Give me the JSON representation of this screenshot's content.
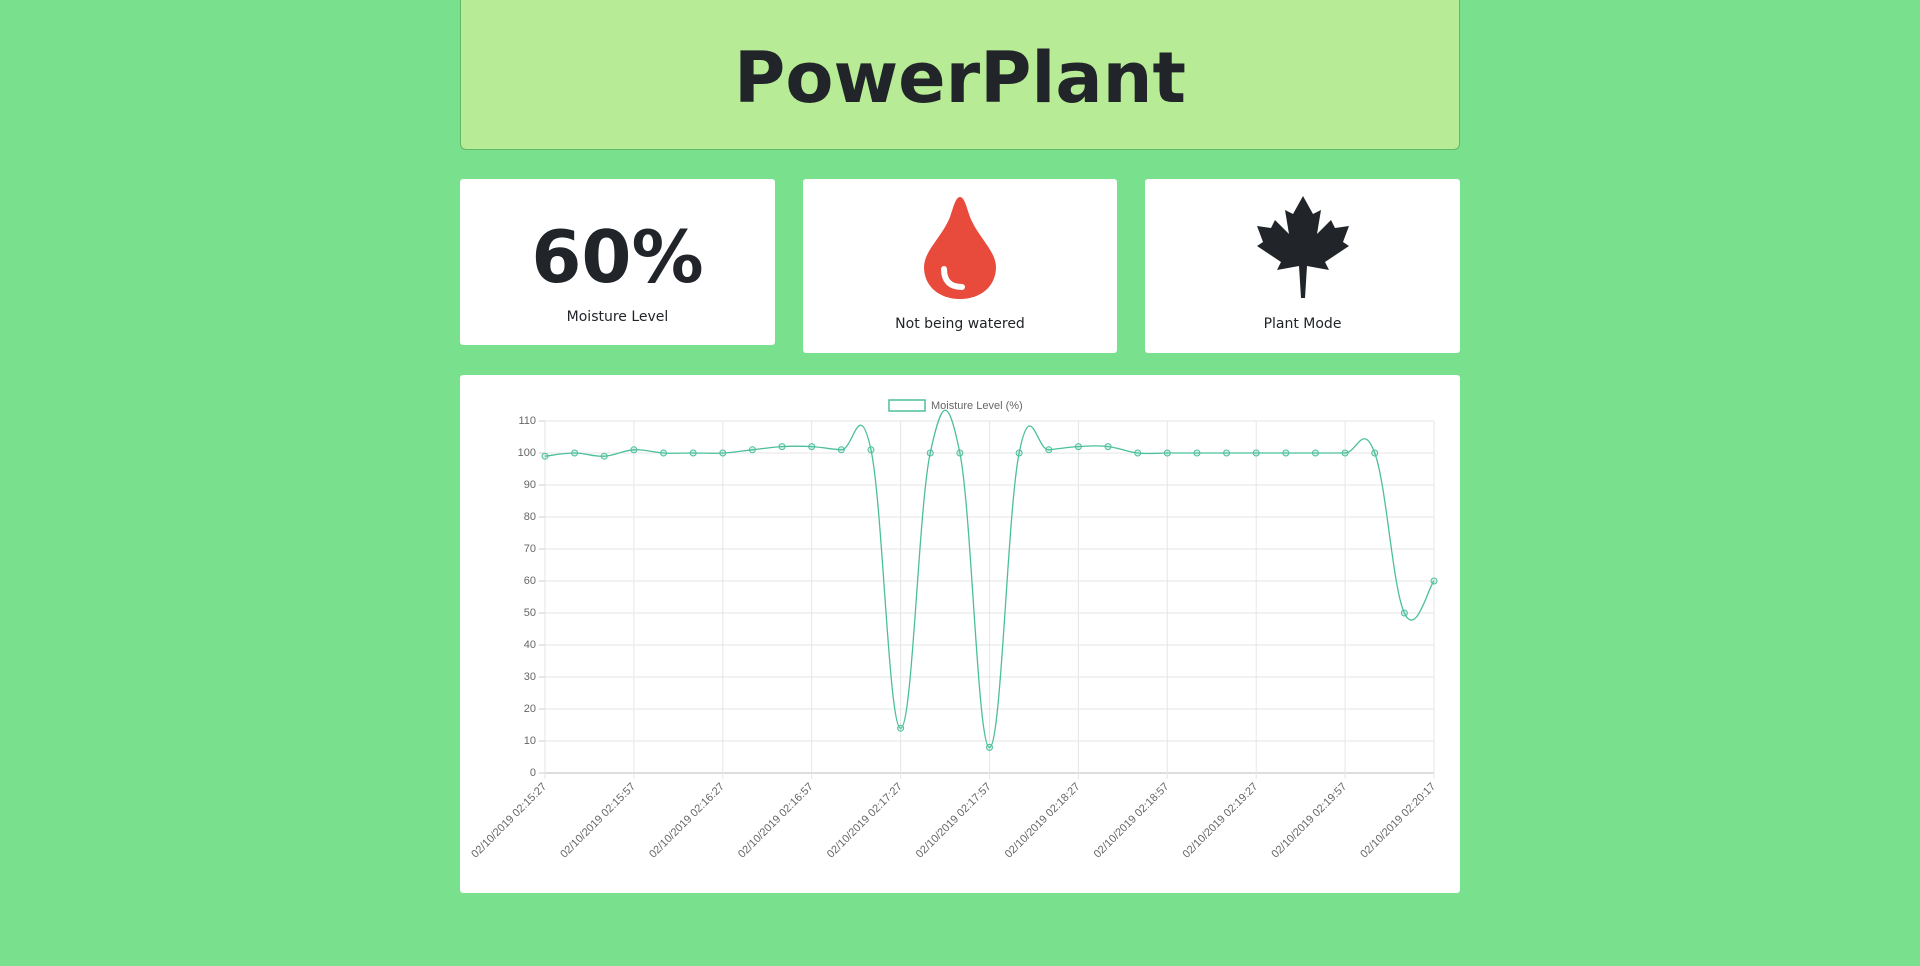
{
  "header": {
    "title": "PowerPlant"
  },
  "cards": [
    {
      "value": "60%",
      "label": "Moisture Level"
    },
    {
      "label": "Not being watered"
    },
    {
      "label": "Plant Mode"
    }
  ],
  "chart_data": {
    "type": "line",
    "categories": [
      "02/10/2019 02:15:27",
      null,
      null,
      "02/10/2019 02:15:57",
      null,
      null,
      "02/10/2019 02:16:27",
      null,
      null,
      "02/10/2019 02:16:57",
      null,
      null,
      "02/10/2019 02:17:27",
      null,
      null,
      "02/10/2019 02:17:57",
      null,
      null,
      "02/10/2019 02:18:27",
      null,
      null,
      "02/10/2019 02:18:57",
      null,
      null,
      "02/10/2019 02:19:27",
      null,
      null,
      "02/10/2019 02:19:57",
      null,
      null,
      "02/10/2019 02:20:17"
    ],
    "series": [
      {
        "name": "Moisture Level (%)",
        "color": "#4bbf9c",
        "values": [
          99,
          100,
          99,
          101,
          100,
          100,
          100,
          101,
          102,
          102,
          101,
          101,
          14,
          100,
          100,
          8,
          100,
          101,
          102,
          102,
          100,
          100,
          100,
          100,
          100,
          100,
          100,
          100,
          100,
          50,
          60
        ]
      }
    ],
    "ylim": [
      0,
      110
    ],
    "yticks": [
      0,
      10,
      20,
      30,
      40,
      50,
      60,
      70,
      80,
      90,
      100,
      110
    ],
    "grid": true,
    "legend": "top"
  }
}
